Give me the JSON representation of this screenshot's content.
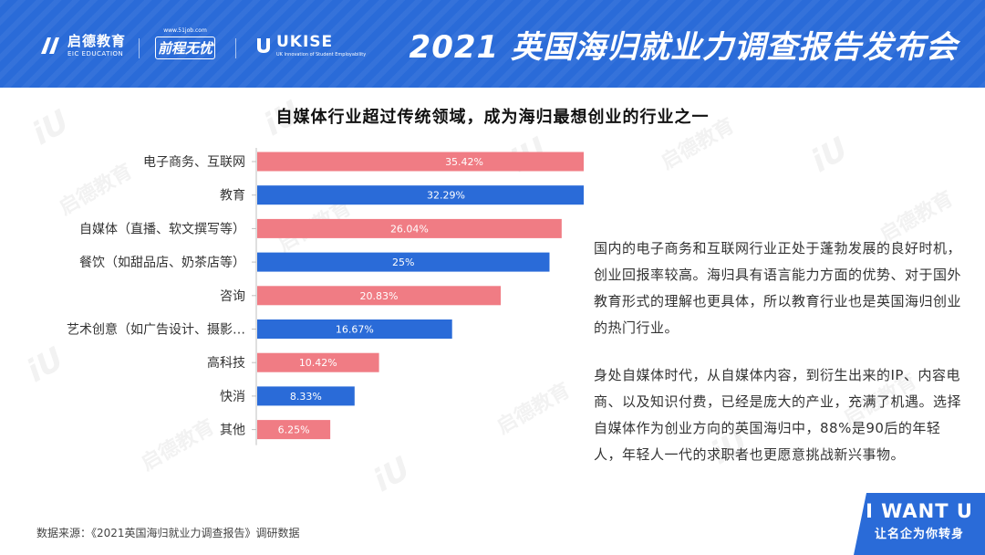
{
  "header": {
    "title": "2021 英国海归就业力调查报告发布会",
    "logo_eic_cn": "启德教育",
    "logo_eic_en": "EIC EDUCATION",
    "logo_51_url": "www.51job.com",
    "logo_51_brand": "前程无忧",
    "logo_ukise": "UKISE",
    "logo_ukise_sub": "UK Innovation of Student Employability"
  },
  "chart_data": {
    "type": "bar",
    "orientation": "horizontal",
    "title": "自媒体行业超过传统领域，成为海归最想创业的行业之一",
    "categories": [
      "电子商务、互联网",
      "教育",
      "自媒体（直播、软文撰写等）",
      "餐饮（如甜品店、奶茶店等）",
      "咨询",
      "艺术创意（如广告设计、摄影…",
      "高科技",
      "快消",
      "其他"
    ],
    "values": [
      35.42,
      32.29,
      26.04,
      25,
      20.83,
      16.67,
      10.42,
      8.33,
      6.25
    ],
    "value_labels": [
      "35.42%",
      "32.29%",
      "26.04%",
      "25%",
      "20.83%",
      "16.67%",
      "10.42%",
      "8.33%",
      "6.25%"
    ],
    "bar_colors": [
      "#f07c84",
      "#2a6bd8",
      "#f07c84",
      "#2a6bd8",
      "#f07c84",
      "#2a6bd8",
      "#f07c84",
      "#2a6bd8",
      "#f07c84"
    ],
    "xlim": [
      0,
      40
    ],
    "grid": false
  },
  "text": {
    "para1": "国内的电子商务和互联网行业正处于蓬勃发展的良好时机，创业回报率较高。海归具有语言能力方面的优势、对于国外教育形式的理解也更具体，所以教育行业也是英国海归创业的热门行业。",
    "para2": "身处自媒体时代，从自媒体内容，到衍生出来的IP、内容电商、以及知识付费，已经是庞大的产业，充满了机遇。选择自媒体作为创业方向的英国海归中，88%是90后的年轻人，年轻人一代的求职者也更愿意挑战新兴事物。"
  },
  "footer": {
    "source": "数据来源：《2021英国海归就业力调查报告》调研数据"
  },
  "badge": {
    "line1": "I WANT U",
    "line2": "让名企为你转身"
  },
  "watermark": {
    "iu": "iU",
    "cn": "启德教育"
  },
  "colors": {
    "header_blue": "#2a6bd8",
    "bar_pink": "#f07c84",
    "bar_blue": "#2a6bd8"
  }
}
